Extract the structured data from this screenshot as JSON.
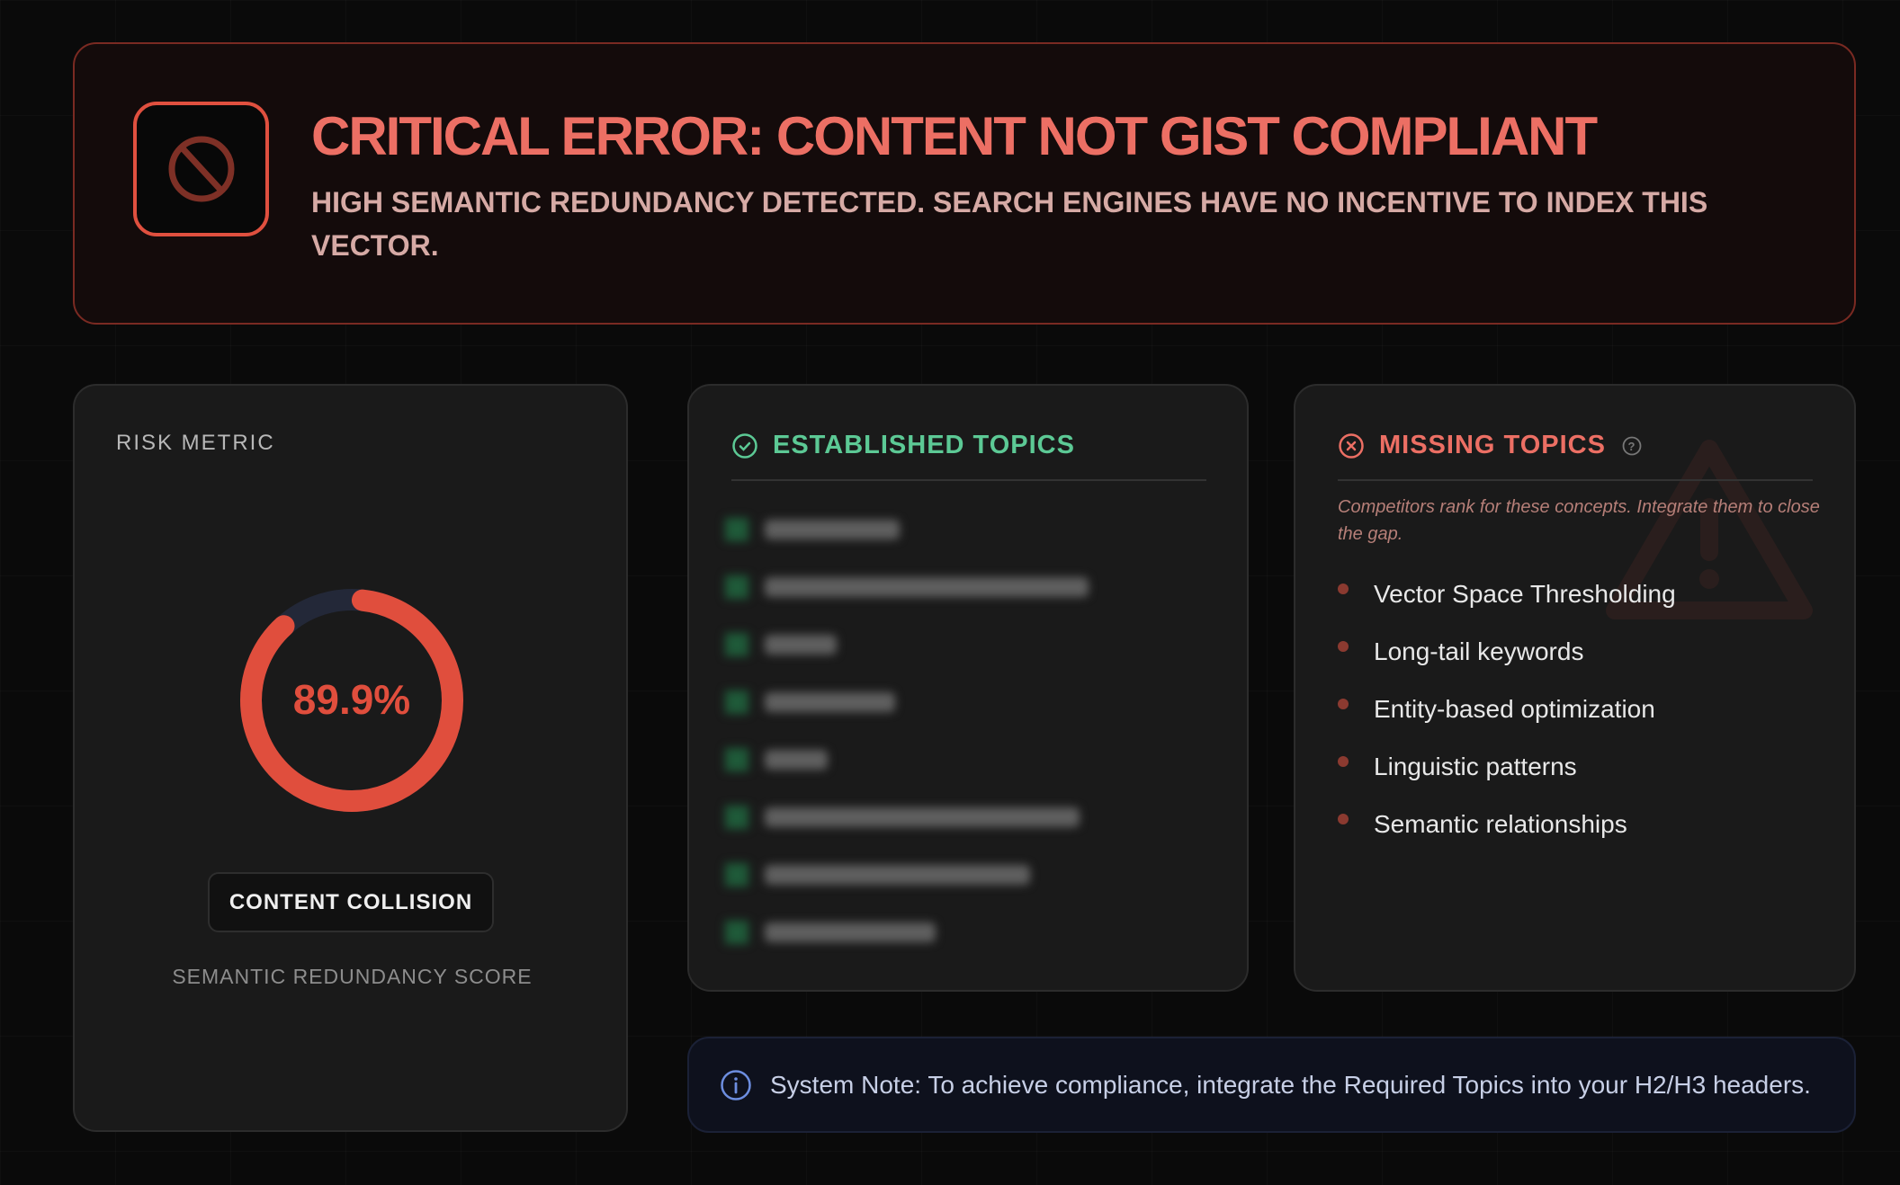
{
  "banner": {
    "icon": "prohibited-icon",
    "title": "CRITICAL ERROR: CONTENT NOT GIST COMPLIANT",
    "subtitle": "HIGH SEMANTIC REDUNDANCY DETECTED. SEARCH ENGINES HAVE NO INCENTIVE TO INDEX THIS VECTOR."
  },
  "risk": {
    "label": "RISK METRIC",
    "value_text": "89.9%",
    "value": 89.9,
    "badge": "CONTENT COLLISION",
    "caption": "SEMANTIC REDUNDANCY SCORE",
    "colors": {
      "fill": "#e04e3d",
      "track": "#232838"
    }
  },
  "established": {
    "icon": "check-circle-icon",
    "title": "ESTABLISHED TOPICS",
    "color": "#5cc995",
    "blurred_item_count": 8
  },
  "missing": {
    "icon": "x-circle-icon",
    "title": "MISSING TOPICS",
    "help_icon": "question-circle-icon",
    "background_icon": "warning-triangle-icon",
    "color": "#ec6f64",
    "description": "Competitors rank for these concepts. Integrate them to close the gap.",
    "items": [
      "Vector Space Thresholding",
      "Long-tail keywords",
      "Entity-based optimization",
      "Linguistic patterns",
      "Semantic relationships"
    ]
  },
  "note": {
    "icon": "info-icon",
    "text": "System Note: To achieve compliance, integrate the Required Topics into your H2/H3 headers."
  }
}
